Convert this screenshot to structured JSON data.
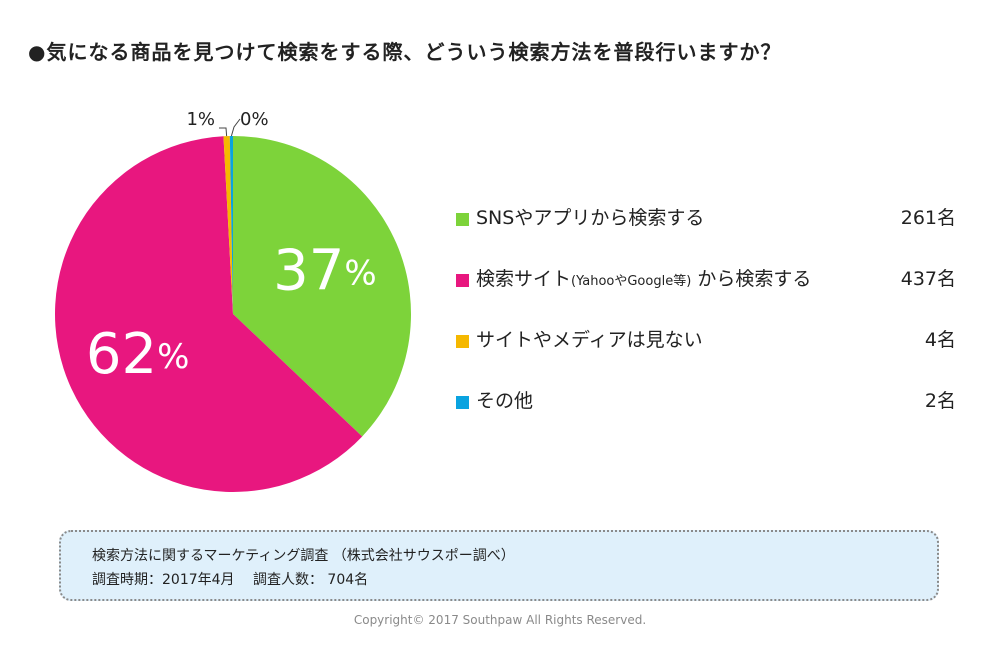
{
  "title": "●気になる商品を見つけて検索をする際、どういう検索方法を普段行いますか？",
  "chart_data": {
    "type": "pie",
    "title": "●気になる商品を見つけて検索をする際、どういう検索方法を普段行いますか？",
    "unit": "名",
    "slices": [
      {
        "label": "SNSやアプリから検索する",
        "label_main": "SNSやアプリから検索する",
        "label_small": "",
        "label_tail": "",
        "value": 261,
        "percent_label": "37",
        "color": "#7dd33a"
      },
      {
        "label": "検索サイト(YahooやGoogle等) から検索する",
        "label_main": "検索サイト",
        "label_small": "(YahooやGoogle等)",
        "label_tail": " から検索する",
        "value": 437,
        "percent_label": "62",
        "color": "#e8177f"
      },
      {
        "label": "サイトやメディアは見ない",
        "label_main": "サイトやメディアは見ない",
        "label_small": "",
        "label_tail": "",
        "value": 4,
        "percent_label": "1%",
        "color": "#f5b800"
      },
      {
        "label": "その他",
        "label_main": "その他",
        "label_small": "",
        "label_tail": "",
        "value": 2,
        "percent_label": "0%",
        "color": "#0aa3e0"
      }
    ],
    "percent_sign": "%"
  },
  "legend_counts": [
    "261名",
    "437名",
    "4名",
    "2名"
  ],
  "note": {
    "line1": "検索方法に関するマーケティング調査 （株式会社サウスポー調べ）",
    "line2": "調査時期：2017年4月　 調査人数： 704名"
  },
  "copyright": "Copyright© 2017 Southpaw All Rights Reserved."
}
